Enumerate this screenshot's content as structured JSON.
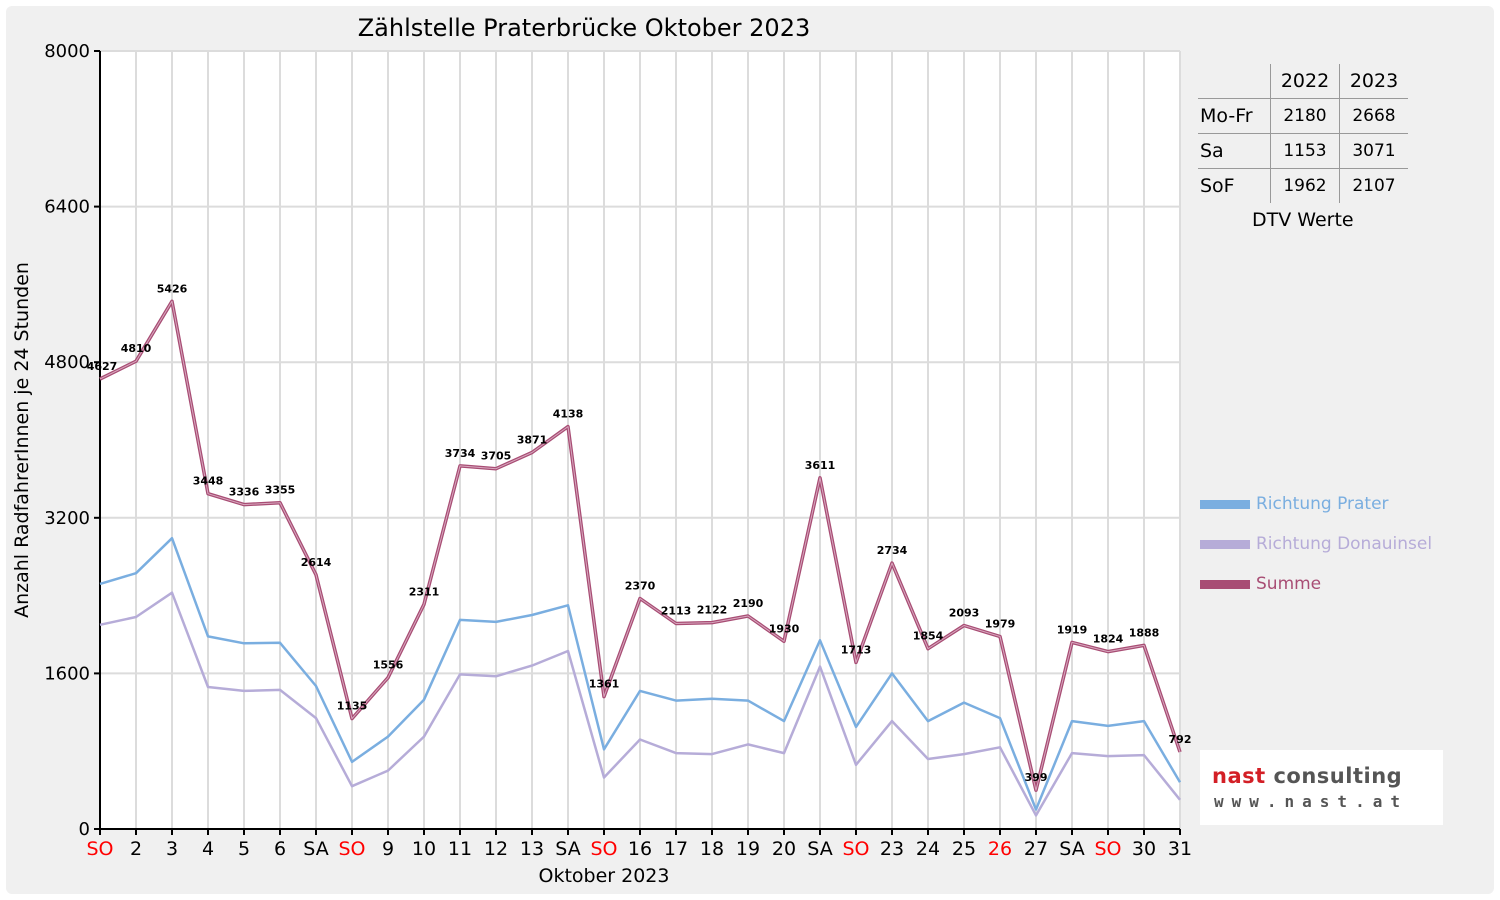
{
  "chart_data": {
    "type": "line",
    "title": "Zählstelle Praterbrücke Oktober 2023",
    "xlabel": "Oktober 2023",
    "ylabel": "Anzahl RadfahrerInnen je 24 Stunden",
    "ylim": [
      0,
      8000
    ],
    "yticks": [
      0,
      1600,
      3200,
      4800,
      6400,
      8000
    ],
    "grid": true,
    "categories": [
      "SO",
      "2",
      "3",
      "4",
      "5",
      "6",
      "SA",
      "SO",
      "9",
      "10",
      "11",
      "12",
      "13",
      "SA",
      "SO",
      "16",
      "17",
      "18",
      "19",
      "20",
      "SA",
      "SO",
      "23",
      "24",
      "25",
      "26",
      "27",
      "SA",
      "SO",
      "30",
      "31"
    ],
    "category_colors": [
      "#ff0000",
      "#000000",
      "#000000",
      "#000000",
      "#000000",
      "#000000",
      "#000000",
      "#ff0000",
      "#000000",
      "#000000",
      "#000000",
      "#000000",
      "#000000",
      "#000000",
      "#ff0000",
      "#000000",
      "#000000",
      "#000000",
      "#000000",
      "#000000",
      "#000000",
      "#ff0000",
      "#000000",
      "#000000",
      "#000000",
      "#ff0000",
      "#000000",
      "#000000",
      "#ff0000",
      "#000000",
      "#000000"
    ],
    "series": [
      {
        "name": "Richtung Prater",
        "color": "#7aaee0",
        "values": [
          2520,
          2630,
          2990,
          1980,
          1910,
          1915,
          1470,
          690,
          950,
          1330,
          2150,
          2130,
          2200,
          2300,
          820,
          1420,
          1320,
          1340,
          1320,
          1110,
          1940,
          1050,
          1600,
          1110,
          1300,
          1140,
          200,
          1110,
          1060,
          1110,
          480
        ]
      },
      {
        "name": "Richtung Donauinsel",
        "color": "#b6acd8",
        "values": [
          2100,
          2180,
          2430,
          1460,
          1420,
          1430,
          1140,
          440,
          600,
          950,
          1590,
          1570,
          1680,
          1830,
          530,
          920,
          780,
          770,
          870,
          780,
          1670,
          660,
          1110,
          720,
          770,
          840,
          140,
          780,
          750,
          760,
          300
        ]
      },
      {
        "name": "Summe",
        "color": "#a84d74",
        "values": [
          4627,
          4810,
          5426,
          3448,
          3336,
          3355,
          2614,
          1135,
          1556,
          2311,
          3734,
          3705,
          3871,
          4138,
          1361,
          2370,
          2113,
          2122,
          2190,
          1930,
          3611,
          1713,
          2734,
          1854,
          2093,
          1979,
          399,
          1919,
          1824,
          1888,
          792
        ],
        "labels": [
          "4627",
          "4810",
          "5426",
          "3448",
          "3336",
          "3355",
          "2614",
          "1135",
          "1556",
          "2311",
          "3734",
          "3705",
          "3871",
          "4138",
          "1361",
          "2370",
          "2113",
          "2122",
          "2190",
          "1930",
          "3611",
          "1713",
          "2734",
          "1854",
          "2093",
          "1979",
          "399",
          "1919",
          "1824",
          "1888",
          "792"
        ]
      }
    ],
    "legend_position": "right"
  },
  "dtv_table": {
    "headers": [
      "2022",
      "2023"
    ],
    "rows": [
      {
        "label": "Mo-Fr",
        "v2022": "2180",
        "v2023": "2668"
      },
      {
        "label": "Sa",
        "v2022": "1153",
        "v2023": "3071"
      },
      {
        "label": "SoF",
        "v2022": "1962",
        "v2023": "2107"
      }
    ],
    "caption": "DTV Werte"
  },
  "logo": {
    "part1": "nast",
    "part2": "consulting",
    "url": "www.nast.at"
  }
}
